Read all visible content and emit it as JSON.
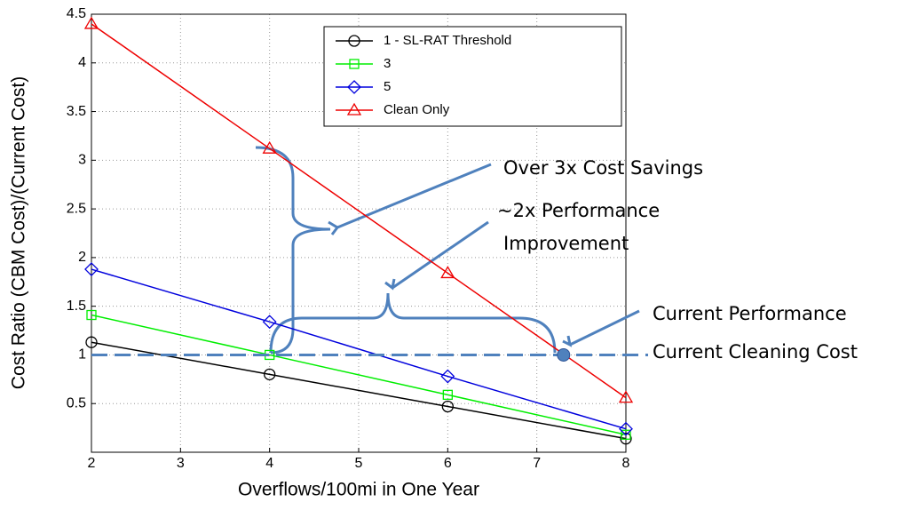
{
  "chart_data": {
    "type": "line",
    "x_label": "Overflows/100mi in One Year",
    "y_label": "Cost Ratio (CBM Cost)/(Current Cost)",
    "x": [
      2,
      4,
      6,
      8
    ],
    "series": [
      {
        "name": "1 - SL-RAT Threshold",
        "color": "#000000",
        "marker": "circle",
        "values": [
          1.13,
          0.8,
          0.47,
          0.14
        ]
      },
      {
        "name": "3",
        "color": "#00ee00",
        "marker": "square",
        "values": [
          1.41,
          1.0,
          0.59,
          0.18
        ]
      },
      {
        "name": "5",
        "color": "#0000dd",
        "marker": "diamond",
        "values": [
          1.88,
          1.34,
          0.78,
          0.24
        ]
      },
      {
        "name": "Clean Only",
        "color": "#ee0000",
        "marker": "triangle",
        "values": [
          4.4,
          3.12,
          1.84,
          0.56
        ]
      }
    ],
    "xlim": [
      2,
      8
    ],
    "xticks": [
      2,
      3,
      4,
      5,
      6,
      7,
      8
    ],
    "ylim": [
      0,
      4.5
    ],
    "yticks": [
      0.5,
      1,
      1.5,
      2,
      2.5,
      3,
      3.5,
      4,
      4.5
    ],
    "grid": true,
    "legend": "upper right",
    "reference_line": 1,
    "current_point": {
      "x": 7.3,
      "y": 1
    },
    "annotations": [
      "Over 3x Cost Savings",
      "~2x Performance",
      "Improvement",
      "Current Performance",
      "Current Cleaning Cost"
    ]
  }
}
